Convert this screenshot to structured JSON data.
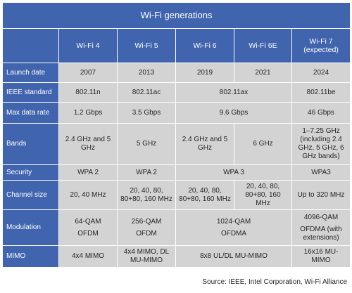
{
  "title": "Wi-Fi generations",
  "columns": [
    "Wi-Fi 4",
    "Wi-Fi 5",
    "Wi-Fi 6",
    "Wi-Fi 6E",
    "Wi-Fi 7 (expected)"
  ],
  "rows": {
    "launch_date": {
      "label": "Launch date",
      "values": [
        "2007",
        "2013",
        "2019",
        "2021",
        "2024"
      ]
    },
    "ieee_standard": {
      "label": "IEEE standard",
      "values": [
        "802.11n",
        "802.11ac",
        "802.11ax",
        "802.11be"
      ]
    },
    "max_data_rate": {
      "label": "Max data rate",
      "values": [
        "1.2 Gbps",
        "3.5 Gbps",
        "9.6 Gbps",
        "46 Gbps"
      ]
    },
    "bands": {
      "label": "Bands",
      "values": [
        "2.4 GHz and 5 GHz",
        "5 GHz",
        "2.4 GHz and 5 GHz",
        "6 GHz",
        "1–7.25 GHz (including 2.4 GHz, 5 GHz, 6 GHz bands)"
      ]
    },
    "security": {
      "label": "Security",
      "values": [
        "WPA 2",
        "WPA 2",
        "WPA 3",
        "WPA3"
      ]
    },
    "channel_size": {
      "label": "Channel size",
      "values": [
        "20, 40 MHz",
        "20, 40, 80, 80+80, 160 MHz",
        "20, 40, 80, 80+80, 160 MHz",
        "20, 40, 80, 80+80, 160 MHz",
        "Up to 320 MHz"
      ]
    },
    "modulation": {
      "label": "Modulation",
      "values": [
        {
          "a": "64-QAM",
          "b": "OFDM"
        },
        {
          "a": "256-QAM",
          "b": "OFDM"
        },
        {
          "a": "1024-QAM",
          "b": "OFDMA"
        },
        {
          "a": "4096-QAM",
          "b": "OFDMA (with extensions)"
        }
      ]
    },
    "mimo": {
      "label": "MIMO",
      "values": [
        "4x4 MIMO",
        "4x4 MIMO, DL MU-MIMO",
        "8x8 UL/DL MU-MIMO",
        "16x16 MU-MIMO"
      ]
    }
  },
  "source": "Source: IEEE, Intel Corporation, Wi-Fi Alliance",
  "colors": {
    "header_blue": "#4064ae",
    "cell_gray": "#d3d3d3",
    "text": "#262626"
  }
}
